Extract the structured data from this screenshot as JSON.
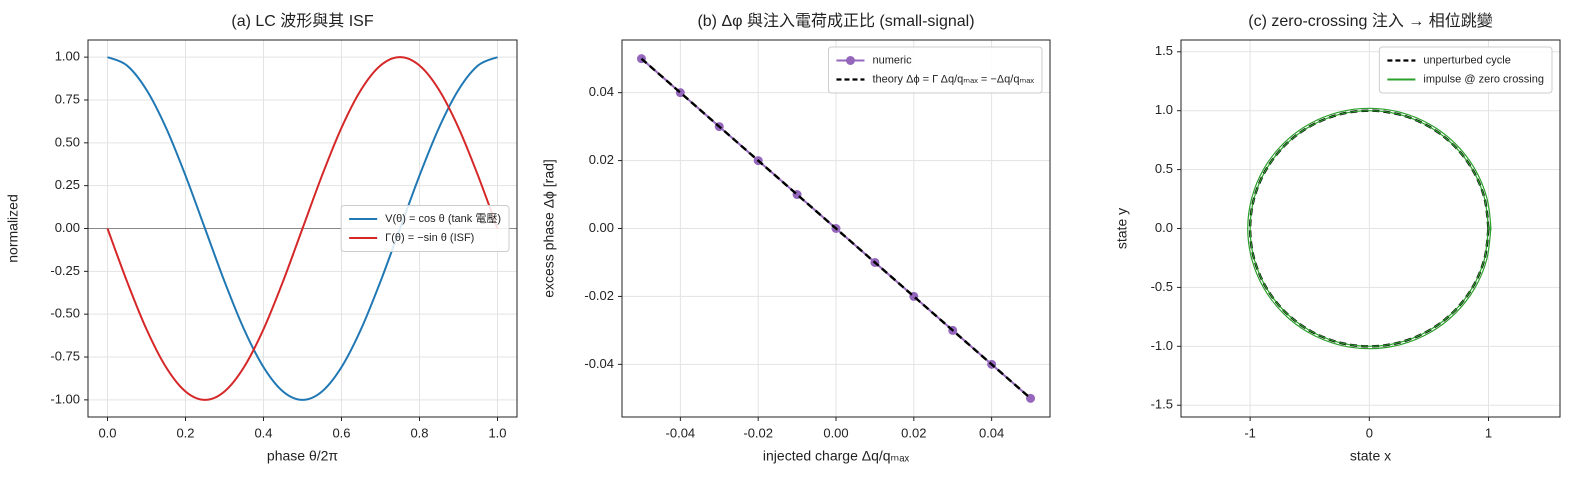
{
  "chart_data": [
    {
      "type": "line",
      "title": "(a) LC 波形與其 ISF",
      "x_label": "phase θ/2π",
      "y_label": "normalized",
      "x": [
        0,
        0.05,
        0.1,
        0.15,
        0.2,
        0.25,
        0.3,
        0.35,
        0.4,
        0.45,
        0.5,
        0.55,
        0.6,
        0.65,
        0.7,
        0.75,
        0.8,
        0.85,
        0.9,
        0.95,
        1
      ],
      "series": [
        {
          "name": "V(θ) = cos θ (tank 電壓)",
          "color": "#1f77b4",
          "values": [
            1,
            0.951,
            0.809,
            0.588,
            0.309,
            0,
            -0.309,
            -0.588,
            -0.809,
            -0.951,
            -1,
            -0.951,
            -0.809,
            -0.588,
            -0.309,
            0,
            0.309,
            0.588,
            0.809,
            0.951,
            1
          ]
        },
        {
          "name": "Γ(θ) = −sin θ (ISF)",
          "color": "#d62728",
          "values": [
            0,
            -0.309,
            -0.588,
            -0.809,
            -0.951,
            -1,
            -0.951,
            -0.809,
            -0.588,
            -0.309,
            0,
            0.309,
            0.588,
            0.809,
            0.951,
            1,
            0.951,
            0.809,
            0.588,
            0.309,
            0
          ]
        }
      ],
      "hline": 0,
      "xlim": [
        -0.05,
        1.05
      ],
      "ylim": [
        -1.1,
        1.1
      ],
      "xticks": [
        {
          "value": 0,
          "label": "0.0"
        },
        0.2,
        0.4,
        0.6,
        0.8,
        {
          "value": 1,
          "label": "1.0"
        }
      ],
      "yticks": [
        {
          "value": 1,
          "label": "1.00"
        },
        0.75,
        {
          "value": 0.5,
          "label": "0.50"
        },
        0.25,
        {
          "value": 0,
          "label": "0.00"
        },
        -0.25,
        {
          "value": -0.5,
          "label": "-0.50"
        },
        -0.75,
        {
          "value": -1,
          "label": "-1.00"
        }
      ],
      "grid": true,
      "legend": "center right"
    },
    {
      "type": "line",
      "title": "(b) Δφ 與注入電荷成正比 (small-signal)",
      "x_label": "injected charge Δq/qₘₐₓ",
      "y_label": "excess phase Δϕ [rad]",
      "x": [
        -0.05,
        -0.04,
        -0.03,
        -0.02,
        -0.01,
        0,
        0.01,
        0.02,
        0.03,
        0.04,
        0.05
      ],
      "series": [
        {
          "name": "numeric",
          "color": "#9467bd",
          "marker": "o",
          "values": [
            0.05,
            0.04,
            0.03,
            0.02,
            0.01,
            0,
            -0.01,
            -0.02,
            -0.03,
            -0.04,
            -0.05
          ]
        },
        {
          "name": "theory Δϕ = Γ Δq/qₘₐₓ = −Δq/qₘₐₓ",
          "color": "#000000",
          "linestyle": "dashed",
          "values": [
            0.05,
            0.04,
            0.03,
            0.02,
            0.01,
            0,
            -0.01,
            -0.02,
            -0.03,
            -0.04,
            -0.05
          ]
        }
      ],
      "xlim": [
        -0.055,
        0.055
      ],
      "ylim": [
        -0.0555,
        0.0555
      ],
      "xticks": [
        -0.04,
        -0.02,
        {
          "value": 0,
          "label": "0.00"
        },
        0.02,
        0.04
      ],
      "yticks": [
        0.04,
        0.02,
        {
          "value": 0,
          "label": "0.00"
        },
        -0.02,
        -0.04
      ],
      "grid": true,
      "legend": "upper right"
    },
    {
      "type": "line",
      "title": "(c) zero-crossing 注入 → 相位跳變",
      "x_label": "state x",
      "y_label": "state y",
      "series": [
        {
          "name": "unperturbed cycle",
          "color": "#000000",
          "linestyle": "dashed",
          "x": [
            1,
            0.966,
            0.866,
            0.707,
            0.5,
            0.259,
            0,
            -0.259,
            -0.5,
            -0.707,
            -0.866,
            -0.966,
            -1,
            -0.966,
            -0.866,
            -0.707,
            -0.5,
            -0.259,
            0,
            0.259,
            0.5,
            0.707,
            0.866,
            0.966,
            1
          ],
          "values": [
            0,
            0.259,
            0.5,
            0.707,
            0.866,
            0.966,
            1,
            0.966,
            0.866,
            0.707,
            0.5,
            0.259,
            0,
            -0.259,
            -0.5,
            -0.707,
            -0.866,
            -0.966,
            -1,
            -0.966,
            -0.866,
            -0.707,
            -0.5,
            -0.259,
            0
          ]
        },
        {
          "name": "impulse @ zero crossing",
          "color": "#2ca02c",
          "x": [
            1,
            0.966,
            0.866,
            0.707,
            0.5,
            0.259,
            0,
            -0.259,
            -0.5,
            -0.707,
            -0.866,
            -0.966,
            -1,
            -0.966,
            -0.866,
            -0.707,
            -0.5,
            -0.259,
            0,
            0.259,
            0.5,
            0.707,
            0.866,
            0.966,
            1,
            1.02,
            0.985,
            0.883,
            0.721,
            0.51,
            0.264,
            0,
            -0.264,
            -0.51,
            -0.721,
            -0.883,
            -0.985,
            -1.02,
            -0.985,
            -0.883,
            -0.721,
            -0.51,
            -0.264,
            0,
            0.264,
            0.51,
            0.721,
            0.883,
            0.985,
            1.02
          ],
          "values": [
            0,
            0.259,
            0.5,
            0.707,
            0.866,
            0.966,
            1,
            0.966,
            0.866,
            0.707,
            0.5,
            0.259,
            0,
            -0.259,
            -0.5,
            -0.707,
            -0.866,
            -0.966,
            -1,
            -0.966,
            -0.866,
            -0.707,
            -0.5,
            -0.259,
            0,
            0,
            0.264,
            0.51,
            0.721,
            0.883,
            0.985,
            1.02,
            0.985,
            0.883,
            0.721,
            0.51,
            0.264,
            0,
            -0.264,
            -0.51,
            -0.721,
            -0.883,
            -0.985,
            -1.02,
            -0.985,
            -0.883,
            -0.721,
            -0.51,
            -0.264,
            0
          ]
        }
      ],
      "xlim": [
        -1.58,
        1.6
      ],
      "ylim": [
        -1.6,
        1.6
      ],
      "xticks": [
        -1,
        0,
        1
      ],
      "yticks": [
        1.5,
        {
          "value": 1,
          "label": "1.0"
        },
        0.5,
        {
          "value": 0,
          "label": "0.0"
        },
        -0.5,
        {
          "value": -1,
          "label": "-1.0"
        },
        -1.5
      ],
      "grid": true,
      "legend": "upper right"
    }
  ]
}
